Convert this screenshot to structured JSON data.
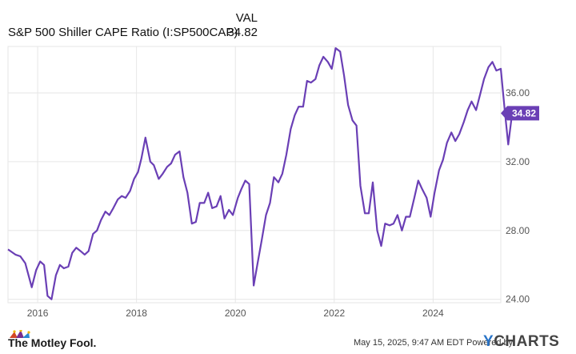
{
  "header": {
    "column_label": "VAL",
    "series_name": "S&P 500 Shiller CAPE Ratio (I:SP500CAP)",
    "series_value": "34.82"
  },
  "footer": {
    "brand": "The Motley Fool.",
    "timestamp": "May 15, 2025, 9:47 AM EDT Powered by",
    "provider": "YCHARTS",
    "provider_initial": "Y",
    "provider_rest": "CHARTS"
  },
  "colors": {
    "line": "#6a3fb5",
    "badge": "#6a3fb5",
    "grid": "#e6e6e6",
    "axis_text": "#555555"
  },
  "chart_data": {
    "type": "line",
    "title": "S&P 500 Shiller CAPE Ratio (I:SP500CAP)",
    "xlabel": "",
    "ylabel": "",
    "xlim": [
      2015.4,
      2025.37
    ],
    "ylim": [
      23.8,
      38.7
    ],
    "x_ticks": [
      2016,
      2018,
      2020,
      2022,
      2024
    ],
    "x_tick_labels": [
      "2016",
      "2018",
      "2020",
      "2022",
      "2024"
    ],
    "y_ticks": [
      24,
      28,
      32,
      36
    ],
    "y_tick_labels": [
      "24.00",
      "28.00",
      "32.00",
      "36.00"
    ],
    "grid": true,
    "last_value_label": "34.82",
    "series": [
      {
        "name": "S&P 500 Shiller CAPE Ratio (I:SP500CAP)",
        "x": [
          2015.4,
          2015.55,
          2015.65,
          2015.75,
          2015.88,
          2015.97,
          2016.05,
          2016.13,
          2016.2,
          2016.28,
          2016.37,
          2016.45,
          2016.53,
          2016.62,
          2016.7,
          2016.78,
          2016.87,
          2016.95,
          2017.03,
          2017.12,
          2017.2,
          2017.28,
          2017.37,
          2017.45,
          2017.53,
          2017.62,
          2017.7,
          2017.78,
          2017.87,
          2017.95,
          2018.03,
          2018.1,
          2018.18,
          2018.28,
          2018.35,
          2018.45,
          2018.53,
          2018.62,
          2018.7,
          2018.78,
          2018.87,
          2018.95,
          2019.03,
          2019.12,
          2019.2,
          2019.28,
          2019.37,
          2019.45,
          2019.53,
          2019.62,
          2019.7,
          2019.78,
          2019.87,
          2019.95,
          2020.05,
          2020.12,
          2020.2,
          2020.28,
          2020.37,
          2020.45,
          2020.53,
          2020.62,
          2020.7,
          2020.78,
          2020.87,
          2020.95,
          2021.03,
          2021.12,
          2021.2,
          2021.28,
          2021.37,
          2021.45,
          2021.53,
          2021.62,
          2021.7,
          2021.78,
          2021.87,
          2021.95,
          2022.03,
          2022.12,
          2022.2,
          2022.28,
          2022.37,
          2022.45,
          2022.53,
          2022.62,
          2022.7,
          2022.78,
          2022.87,
          2022.95,
          2023.03,
          2023.12,
          2023.2,
          2023.28,
          2023.37,
          2023.45,
          2023.53,
          2023.62,
          2023.7,
          2023.78,
          2023.87,
          2023.95,
          2024.03,
          2024.12,
          2024.2,
          2024.28,
          2024.37,
          2024.45,
          2024.53,
          2024.62,
          2024.7,
          2024.78,
          2024.87,
          2024.95,
          2025.03,
          2025.12,
          2025.2,
          2025.28,
          2025.37
        ],
        "y": [
          26.9,
          26.6,
          26.5,
          26.1,
          24.7,
          25.7,
          26.2,
          26.0,
          24.2,
          24.0,
          25.4,
          26.0,
          25.8,
          25.9,
          26.7,
          27.0,
          26.8,
          26.6,
          26.8,
          27.8,
          28.0,
          28.6,
          29.1,
          28.9,
          29.3,
          29.8,
          30.0,
          29.9,
          30.3,
          31.0,
          31.4,
          32.2,
          33.4,
          32.0,
          31.8,
          31.0,
          31.3,
          31.7,
          31.9,
          32.4,
          32.6,
          31.1,
          30.2,
          28.4,
          28.5,
          29.6,
          29.6,
          30.2,
          29.3,
          29.4,
          30.0,
          28.7,
          29.2,
          28.9,
          29.9,
          30.4,
          30.9,
          30.7,
          24.8,
          26.1,
          27.4,
          28.9,
          29.6,
          31.1,
          30.8,
          31.3,
          32.4,
          33.9,
          34.7,
          35.2,
          35.2,
          36.7,
          36.6,
          36.8,
          37.6,
          38.1,
          37.8,
          37.4,
          38.6,
          38.4,
          37.0,
          35.3,
          34.4,
          34.1,
          30.6,
          29.0,
          29.0,
          30.8,
          28.0,
          27.1,
          28.4,
          28.3,
          28.4,
          28.9,
          28.0,
          28.8,
          28.8,
          29.9,
          30.9,
          30.4,
          29.9,
          28.8,
          30.2,
          31.5,
          32.1,
          33.1,
          33.7,
          33.2,
          33.6,
          34.3,
          35.0,
          35.5,
          35.0,
          35.9,
          36.8,
          37.5,
          37.8,
          37.3,
          37.4
        ],
        "x_tail": [
          2025.37,
          2025.45,
          2025.52,
          2025.6
        ],
        "y_tail": [
          37.4,
          35.0,
          33.0,
          34.82
        ]
      }
    ]
  }
}
